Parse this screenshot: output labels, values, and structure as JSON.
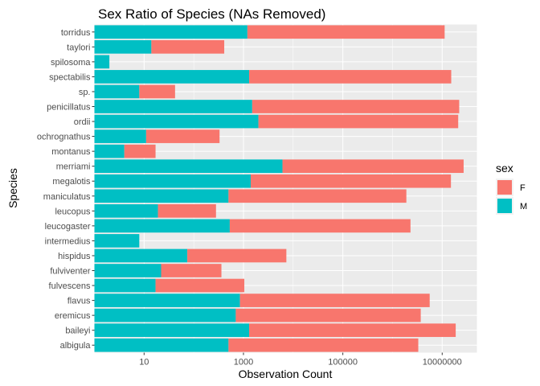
{
  "chart_data": {
    "type": "bar",
    "stacked": true,
    "orientation": "horizontal",
    "title": "Sex Ratio of Species (NAs Removed)",
    "xlabel": "Observation Count",
    "ylabel": "Species",
    "x_scale": "log10",
    "xlim": [
      1,
      50000000
    ],
    "x_ticks": [
      10,
      1000,
      100000,
      10000000
    ],
    "x_tick_labels": [
      "10",
      "1000",
      "100000",
      "10000000"
    ],
    "grid": true,
    "legend": {
      "title": "sex",
      "position": "right",
      "entries": [
        "F",
        "M"
      ]
    },
    "colors": {
      "F": "#F8766D",
      "M": "#00BFC4",
      "panel": "#EBEBEB",
      "grid": "#FFFFFF"
    },
    "categories": [
      "albigula",
      "baileyi",
      "eremicus",
      "flavus",
      "fulvescens",
      "fulviventer",
      "hispidus",
      "intermedius",
      "leucogaster",
      "leucopus",
      "maniculatus",
      "megalotis",
      "merriami",
      "montanus",
      "ochrognathus",
      "ordii",
      "penicillatus",
      "sp.",
      "spectabilis",
      "spilosoma",
      "taylori",
      "torridus"
    ],
    "series": [
      {
        "name": "M",
        "values": [
          500,
          1300,
          700,
          850,
          17,
          22,
          74,
          8,
          530,
          19,
          500,
          1400,
          6100,
          4,
          11,
          2000,
          1500,
          8,
          1300,
          2,
          14,
          1200
        ]
      },
      {
        "name": "F",
        "values": [
          3300000,
          18700000,
          3700000,
          5600000,
          1040,
          360,
          7300,
          0,
          2300000,
          280,
          1900000,
          15000000,
          27000000,
          17,
          330,
          21000000,
          22000000,
          42,
          15200000,
          0,
          410,
          11200000
        ]
      }
    ]
  }
}
